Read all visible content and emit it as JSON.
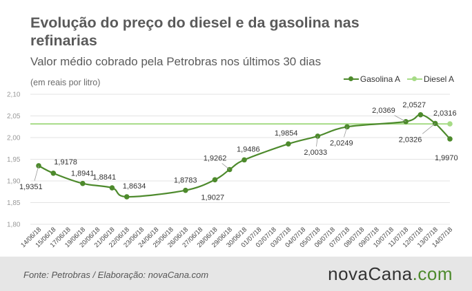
{
  "header": {
    "title": "Evolução do preço do diesel e da gasolina nas refinarias",
    "subtitle": "Valor médio cobrado pela Petrobras nos últimos 30 dias",
    "unit_note": "(em reais por litro)"
  },
  "footer": {
    "source": "Fonte: Petrobras / Elaboração: novaCana.com",
    "logo_main": "novaCana",
    "logo_suffix": ".com"
  },
  "colors": {
    "gasolina": "#4d8a2c",
    "diesel": "#a6db86",
    "footer_bg": "#e6e6e6"
  },
  "chart_data": {
    "type": "line",
    "y_range": [
      1.8,
      2.1
    ],
    "y_ticks": [
      "1,80",
      "1,85",
      "1,90",
      "1,95",
      "2,00",
      "2,05",
      "2,10"
    ],
    "legend_position": "top-right",
    "categories": [
      "14/06/18",
      "15/06/18",
      "17/06/18",
      "19/06/18",
      "20/06/18",
      "21/06/18",
      "22/06/18",
      "23/06/18",
      "24/06/18",
      "25/06/18",
      "26/06/18",
      "27/06/18",
      "28/06/18",
      "29/06/18",
      "30/06/18",
      "01/07/18",
      "02/07/18",
      "03/07/18",
      "04/07/18",
      "05/07/18",
      "06/07/18",
      "07/07/18",
      "08/07/18",
      "09/07/18",
      "10/07/18",
      "11/07/18",
      "12/07/18",
      "13/07/18",
      "14/07/18"
    ],
    "series": [
      {
        "name": "Gasolina A",
        "points": [
          {
            "i": 0,
            "v": 1.9351,
            "label": "1,9351"
          },
          {
            "i": 1,
            "v": 1.9178,
            "label": "1,9178"
          },
          {
            "i": 3,
            "v": 1.8941,
            "label": "1,8941"
          },
          {
            "i": 5,
            "v": 1.8841,
            "label": "1,8841"
          },
          {
            "i": 6,
            "v": 1.8634,
            "label": "1,8634"
          },
          {
            "i": 10,
            "v": 1.8783,
            "label": "1,8783"
          },
          {
            "i": 12,
            "v": 1.9027,
            "label": "1,9027"
          },
          {
            "i": 13,
            "v": 1.9262,
            "label": "1,9262"
          },
          {
            "i": 14,
            "v": 1.9486,
            "label": "1,9486"
          },
          {
            "i": 17,
            "v": 1.9854,
            "label": "1,9854"
          },
          {
            "i": 19,
            "v": 2.0033,
            "label": "2,0033"
          },
          {
            "i": 21,
            "v": 2.0249,
            "label": "2,0249"
          },
          {
            "i": 25,
            "v": 2.0369,
            "label": "2,0369"
          },
          {
            "i": 26,
            "v": 2.0527,
            "label": "2,0527"
          },
          {
            "i": 27,
            "v": 2.0326,
            "label": "2,0326"
          },
          {
            "i": 28,
            "v": 1.997,
            "label": "1,9970"
          }
        ]
      },
      {
        "name": "Diesel A",
        "points": [
          {
            "i": 0,
            "v": 2.0316
          },
          {
            "i": 28,
            "v": 2.0316,
            "label": "2,0316"
          }
        ]
      }
    ]
  }
}
